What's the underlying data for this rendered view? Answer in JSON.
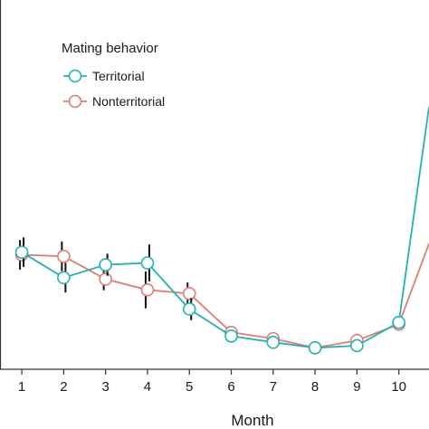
{
  "chart_data": {
    "type": "line",
    "xlabel": "Month",
    "ylabel": "",
    "x": [
      1,
      2,
      3,
      4,
      5,
      6,
      7,
      8,
      9,
      10
    ],
    "xlim": [
      0.48,
      10.72
    ],
    "ylim": [
      0,
      1
    ],
    "legend": {
      "title": "Mating behavior",
      "placement": "top-left"
    },
    "series": [
      {
        "name": "Territorial",
        "color": "#21b3b3",
        "values": [
          0.317,
          0.248,
          0.283,
          0.288,
          0.163,
          0.09,
          0.073,
          0.058,
          0.064,
          0.127
        ],
        "error": [
          0.04,
          0.04,
          0.03,
          0.05,
          0.03,
          0.0,
          0.0,
          0.0,
          0.0,
          0.0
        ],
        "end_value": 0.71
      },
      {
        "name": "Nonterritorial",
        "color": "#e07c72",
        "values": [
          0.31,
          0.306,
          0.244,
          0.215,
          0.205,
          0.1,
          0.083,
          0.058,
          0.078,
          0.122
        ],
        "error": [
          0.04,
          0.04,
          0.03,
          0.05,
          0.03,
          0.0,
          0.0,
          0.0,
          0.0,
          0.0
        ],
        "end_value": 0.34
      }
    ]
  }
}
